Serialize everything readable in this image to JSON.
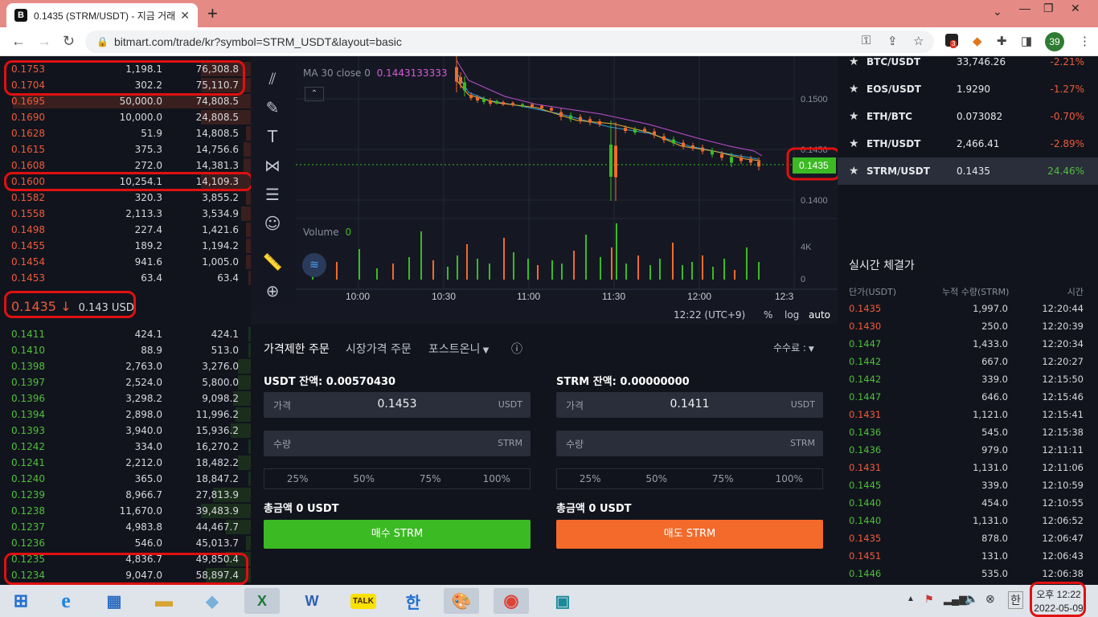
{
  "browser": {
    "tab_title": "0.1435 (STRM/USDT) - 지금 거래",
    "url": "bitmart.com/trade/kr?symbol=STRM_USDT&layout=basic",
    "favicon": "B",
    "profile": "39",
    "ext_badge": "3"
  },
  "orderbook": {
    "asks": [
      {
        "price": "0.1753",
        "amount": "1,198.1",
        "total": "76,308.8",
        "fill": 0.2
      },
      {
        "price": "0.1704",
        "amount": "302.2",
        "total": "75,110.7",
        "fill": 0.2
      },
      {
        "price": "0.1695",
        "amount": "50,000.0",
        "total": "74,808.5",
        "fill": 0.95
      },
      {
        "price": "0.1690",
        "amount": "10,000.0",
        "total": "24,808.5",
        "fill": 0.2
      },
      {
        "price": "0.1628",
        "amount": "51.9",
        "total": "14,808.5",
        "fill": 0.02
      },
      {
        "price": "0.1615",
        "amount": "375.3",
        "total": "14,756.6",
        "fill": 0.03
      },
      {
        "price": "0.1608",
        "amount": "272.0",
        "total": "14,381.3",
        "fill": 0.03
      },
      {
        "price": "0.1600",
        "amount": "10,254.1",
        "total": "14,109.3",
        "fill": 0.2
      },
      {
        "price": "0.1582",
        "amount": "320.3",
        "total": "3,855.2",
        "fill": 0.02
      },
      {
        "price": "0.1558",
        "amount": "2,113.3",
        "total": "3,534.9",
        "fill": 0.04
      },
      {
        "price": "0.1498",
        "amount": "227.4",
        "total": "1,421.6",
        "fill": 0.02
      },
      {
        "price": "0.1455",
        "amount": "189.2",
        "total": "1,194.2",
        "fill": 0.02
      },
      {
        "price": "0.1454",
        "amount": "941.6",
        "total": "1,005.0",
        "fill": 0.02
      },
      {
        "price": "0.1453",
        "amount": "63.4",
        "total": "63.4",
        "fill": 0.01
      }
    ],
    "last_price": "0.1435",
    "last_arrow": "↓",
    "last_usd": "0.143 USD",
    "bids": [
      {
        "price": "0.1411",
        "amount": "424.1",
        "total": "424.1",
        "fill": 0.01
      },
      {
        "price": "0.1410",
        "amount": "88.9",
        "total": "513.0",
        "fill": 0.01
      },
      {
        "price": "0.1398",
        "amount": "2,763.0",
        "total": "3,276.0",
        "fill": 0.05
      },
      {
        "price": "0.1397",
        "amount": "2,524.0",
        "total": "5,800.0",
        "fill": 0.05
      },
      {
        "price": "0.1396",
        "amount": "3,298.2",
        "total": "9,098.2",
        "fill": 0.07
      },
      {
        "price": "0.1394",
        "amount": "2,898.0",
        "total": "11,996.2",
        "fill": 0.06
      },
      {
        "price": "0.1393",
        "amount": "3,940.0",
        "total": "15,936.2",
        "fill": 0.08
      },
      {
        "price": "0.1242",
        "amount": "334.0",
        "total": "16,270.2",
        "fill": 0.01
      },
      {
        "price": "0.1241",
        "amount": "2,212.0",
        "total": "18,482.2",
        "fill": 0.05
      },
      {
        "price": "0.1240",
        "amount": "365.0",
        "total": "18,847.2",
        "fill": 0.01
      },
      {
        "price": "0.1239",
        "amount": "8,966.7",
        "total": "27,813.9",
        "fill": 0.15
      },
      {
        "price": "0.1238",
        "amount": "11,670.0",
        "total": "39,483.9",
        "fill": 0.2
      },
      {
        "price": "0.1237",
        "amount": "4,983.8",
        "total": "44,467.7",
        "fill": 0.1
      },
      {
        "price": "0.1236",
        "amount": "546.0",
        "total": "45,013.7",
        "fill": 0.02
      },
      {
        "price": "0.1235",
        "amount": "4,836.7",
        "total": "49,850.4",
        "fill": 0.1
      },
      {
        "price": "0.1234",
        "amount": "9,047.0",
        "total": "58,897.4",
        "fill": 0.18
      }
    ]
  },
  "chart": {
    "ma_label": "MA 30 close",
    "ma_zero": "0",
    "ma_value": "0.1443133333",
    "volume_label": "Volume",
    "volume_value": "0",
    "price_ticks": [
      "0.1500",
      "0.1450",
      "0.1400"
    ],
    "current_price": "0.1435",
    "vol_ticks": [
      "4K",
      "0"
    ],
    "time_ticks": [
      "10:00",
      "10:30",
      "11:00",
      "11:30",
      "12:00",
      "12:3"
    ],
    "footer": {
      "time": "12:22 (UTC+9)",
      "pct": "%",
      "log": "log",
      "auto": "auto"
    }
  },
  "form": {
    "tab_limit": "가격제한 주문",
    "tab_market": "시장가격 주문",
    "tab_post": "포스트온니",
    "fee_label": "수수료 :",
    "buy": {
      "balance": "USDT 잔액: 0.00570430",
      "price_label": "가격",
      "price_value": "0.1453",
      "price_unit": "USDT",
      "qty_label": "수량",
      "qty_unit": "STRM",
      "total": "총금액 0 USDT",
      "button": "매수 STRM"
    },
    "sell": {
      "balance": "STRM 잔액: 0.00000000",
      "price_label": "가격",
      "price_value": "0.1411",
      "price_unit": "USDT",
      "qty_label": "수량",
      "qty_unit": "STRM",
      "total": "총금액 0 USDT",
      "button": "매도 STRM"
    },
    "pcts": [
      "25%",
      "50%",
      "75%",
      "100%"
    ]
  },
  "markets": [
    {
      "name": "BTC/USDT",
      "price": "33,746.26",
      "change": "-2.21%",
      "up": false
    },
    {
      "name": "EOS/USDT",
      "price": "1.9290",
      "change": "-1.27%",
      "up": false
    },
    {
      "name": "ETH/BTC",
      "price": "0.073082",
      "change": "-0.70%",
      "up": false
    },
    {
      "name": "ETH/USDT",
      "price": "2,466.41",
      "change": "-2.89%",
      "up": false
    },
    {
      "name": "STRM/USDT",
      "price": "0.1435",
      "change": "24.46%",
      "up": true
    }
  ],
  "trades": {
    "title": "실시간 체결가",
    "col_price": "단가(USDT)",
    "col_qty": "누적 수량(STRM)",
    "col_time": "시간",
    "rows": [
      {
        "price": "0.1435",
        "qty": "1,997.0",
        "time": "12:20:44",
        "up": false
      },
      {
        "price": "0.1430",
        "qty": "250.0",
        "time": "12:20:39",
        "up": false
      },
      {
        "price": "0.1447",
        "qty": "1,433.0",
        "time": "12:20:34",
        "up": true
      },
      {
        "price": "0.1442",
        "qty": "667.0",
        "time": "12:20:27",
        "up": true
      },
      {
        "price": "0.1442",
        "qty": "339.0",
        "time": "12:15:50",
        "up": true
      },
      {
        "price": "0.1447",
        "qty": "646.0",
        "time": "12:15:46",
        "up": true
      },
      {
        "price": "0.1431",
        "qty": "1,121.0",
        "time": "12:15:41",
        "up": false
      },
      {
        "price": "0.1436",
        "qty": "545.0",
        "time": "12:15:38",
        "up": true
      },
      {
        "price": "0.1436",
        "qty": "979.0",
        "time": "12:11:11",
        "up": true
      },
      {
        "price": "0.1431",
        "qty": "1,131.0",
        "time": "12:11:06",
        "up": false
      },
      {
        "price": "0.1445",
        "qty": "339.0",
        "time": "12:10:59",
        "up": true
      },
      {
        "price": "0.1440",
        "qty": "454.0",
        "time": "12:10:55",
        "up": true
      },
      {
        "price": "0.1440",
        "qty": "1,131.0",
        "time": "12:06:52",
        "up": true
      },
      {
        "price": "0.1435",
        "qty": "878.0",
        "time": "12:06:47",
        "up": false
      },
      {
        "price": "0.1451",
        "qty": "131.0",
        "time": "12:06:43",
        "up": false
      },
      {
        "price": "0.1446",
        "qty": "535.0",
        "time": "12:06:38",
        "up": true
      }
    ]
  },
  "taskbar": {
    "time": "오후 12:22",
    "date": "2022-05-09",
    "ime": "한",
    "talk": "TALK"
  },
  "colors": {
    "up": "#4fbf3b",
    "down": "#f05a3b",
    "buy": "#3cba24",
    "sell": "#f36a2a"
  }
}
